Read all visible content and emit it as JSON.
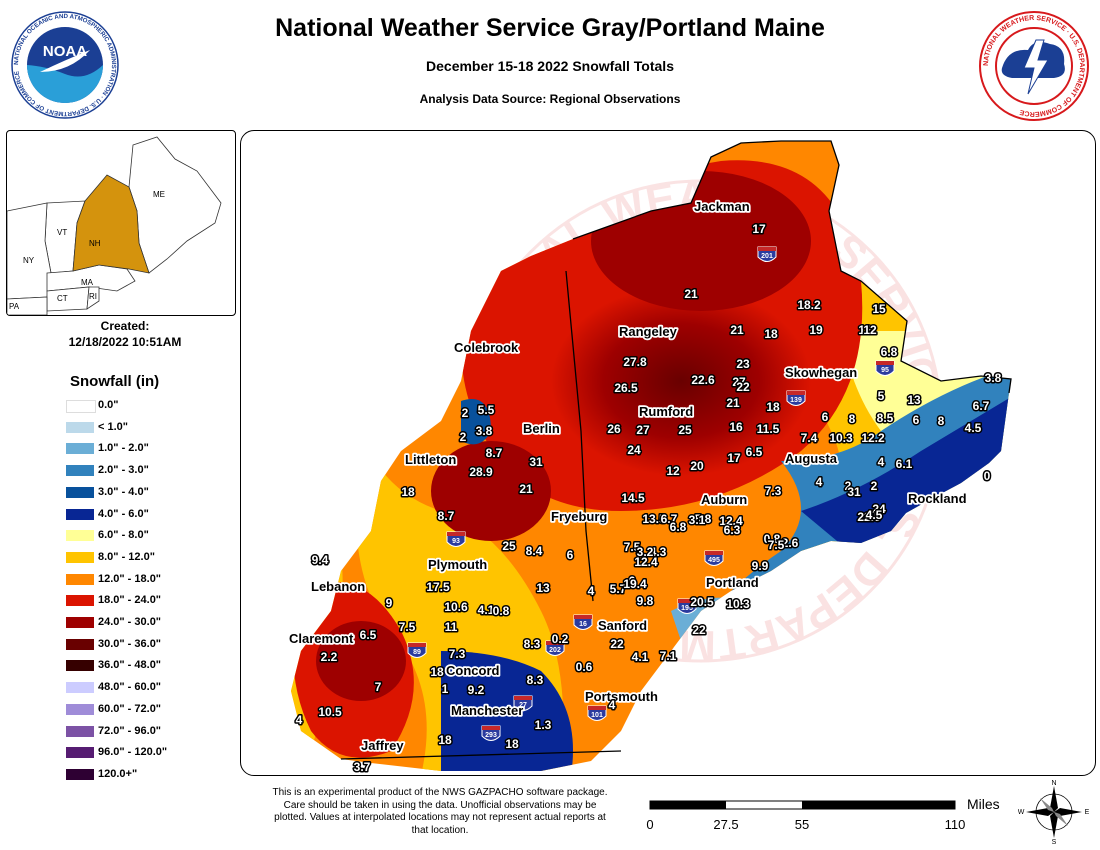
{
  "header": {
    "title": "National Weather Service Gray/Portland Maine",
    "subtitle": "December 15-18 2022 Snowfall Totals",
    "source": "Analysis Data Source: Regional Observations"
  },
  "logos": {
    "noaa_text": "NOAA",
    "noaa_ring": "NATIONAL OCEANIC AND ATMOSPHERIC ADMINISTRATION · U.S. DEPARTMENT OF COMMERCE",
    "nws_ring": "NATIONAL WEATHER SERVICE · U.S. DEPARTMENT OF COMMERCE"
  },
  "inset": {
    "labels": [
      "ME",
      "VT",
      "NH",
      "NY",
      "MA",
      "CT",
      "RI",
      "PA"
    ]
  },
  "created": {
    "label": "Created:",
    "timestamp": "12/18/2022 10:51AM"
  },
  "legend": {
    "title": "Snowfall (in)",
    "items": [
      {
        "label": "0.0\"",
        "color": "#ffffff"
      },
      {
        "label": "< 1.0\"",
        "color": "#bcd9ea"
      },
      {
        "label": "1.0\" - 2.0\"",
        "color": "#6baed6"
      },
      {
        "label": "2.0\" - 3.0\"",
        "color": "#3182bd"
      },
      {
        "label": "3.0\" - 4.0\"",
        "color": "#08519c"
      },
      {
        "label": "4.0\" - 6.0\"",
        "color": "#082694"
      },
      {
        "label": "6.0\" - 8.0\"",
        "color": "#ffff96"
      },
      {
        "label": "8.0\" - 12.0\"",
        "color": "#ffc400"
      },
      {
        "label": "12.0\" - 18.0\"",
        "color": "#ff8700"
      },
      {
        "label": "18.0\" - 24.0\"",
        "color": "#db1400"
      },
      {
        "label": "24.0\" - 30.0\"",
        "color": "#9e0000"
      },
      {
        "label": "30.0\" - 36.0\"",
        "color": "#690000"
      },
      {
        "label": "36.0\" - 48.0\"",
        "color": "#360000"
      },
      {
        "label": "48.0\" - 60.0\"",
        "color": "#ccccff"
      },
      {
        "label": "60.0\" - 72.0\"",
        "color": "#9f8cd8"
      },
      {
        "label": "72.0\" - 96.0\"",
        "color": "#7c52a5"
      },
      {
        "label": "96.0\" - 120.0\"",
        "color": "#561c72"
      },
      {
        "label": "120.0+\"",
        "color": "#2e0033"
      }
    ]
  },
  "map": {
    "watermark": "NATIONAL WEATHER SERVICE · U.S. DEPARTMENT OF COMMERCE",
    "cities": [
      "Jackman",
      "Rangeley",
      "Skowhegan",
      "Colebrook",
      "Rumford",
      "Berlin",
      "Augusta",
      "Littleton",
      "Auburn",
      "Rockland",
      "Fryeburg",
      "Plymouth",
      "Portland",
      "Lebanon",
      "Sanford",
      "Claremont",
      "Concord",
      "Portsmouth",
      "Manchester",
      "Jaffrey"
    ],
    "values": [
      "17",
      "21",
      "18.2",
      "15",
      "12",
      "21",
      "18",
      "19",
      "12",
      "6.8",
      "27.8",
      "23",
      "22.6",
      "27",
      "22",
      "26.5",
      "21",
      "18",
      "5",
      "13",
      "5.5",
      "2",
      "2",
      "3.8",
      "26",
      "27",
      "25",
      "16",
      "11.5",
      "6",
      "8",
      "8.5",
      "6",
      "8",
      "4.5",
      "6.7",
      "3.8",
      "8.7",
      "31",
      "24",
      "6.5",
      "7.4",
      "10.3",
      "12.2",
      "28.9",
      "12",
      "20",
      "17",
      "4",
      "6.1",
      "0",
      "21",
      "18",
      "14.5",
      "13.5",
      "6.7",
      "5.8",
      "12.4",
      "7.3",
      "4",
      "2",
      "2",
      "31",
      "24",
      "22.5",
      "3.1",
      "6.8",
      "6.3",
      "4.5",
      "2.6",
      "0.8",
      "7.5",
      "8.7",
      "25",
      "8.4",
      "6",
      "4.3",
      "7.5",
      "3.2",
      "12.4",
      "9.9",
      "9.4",
      "17.5",
      "13",
      "4",
      "5.7",
      "6",
      "19.4",
      "9.8",
      "9",
      "10.6",
      "4.1",
      "0.8",
      "20.5",
      "10.3",
      "7.5",
      "11",
      "8.3",
      "0.2",
      "22",
      "22",
      "2.2",
      "6.5",
      "7.3",
      "0.6",
      "4.1",
      "7.1",
      "18",
      "8.3",
      "7",
      "1",
      "9.2",
      "4",
      "4",
      "10.5",
      "1.3",
      "18",
      "18",
      "3.7"
    ],
    "highway_shields": [
      "201",
      "95",
      "139",
      "93",
      "495",
      "195",
      "16",
      "202",
      "89",
      "27",
      "101",
      "293"
    ]
  },
  "disclaimer": "This is an experimental product of the NWS GAZPACHO software package. Care should be taken in using the data. Unofficial observations may be plotted. Values at interpolated locations may not represent actual reports at that location.",
  "scale": {
    "unit": "Miles",
    "ticks": [
      "0",
      "27.5",
      "55",
      "110"
    ]
  },
  "compass": {
    "n": "N",
    "s": "S",
    "e": "E",
    "w": "W"
  },
  "colors": {
    "noaa_blue": "#1b3f94",
    "noaa_light": "#2a9fd8",
    "nws_red": "#d7191c",
    "inset_highlight": "#d4930d"
  }
}
